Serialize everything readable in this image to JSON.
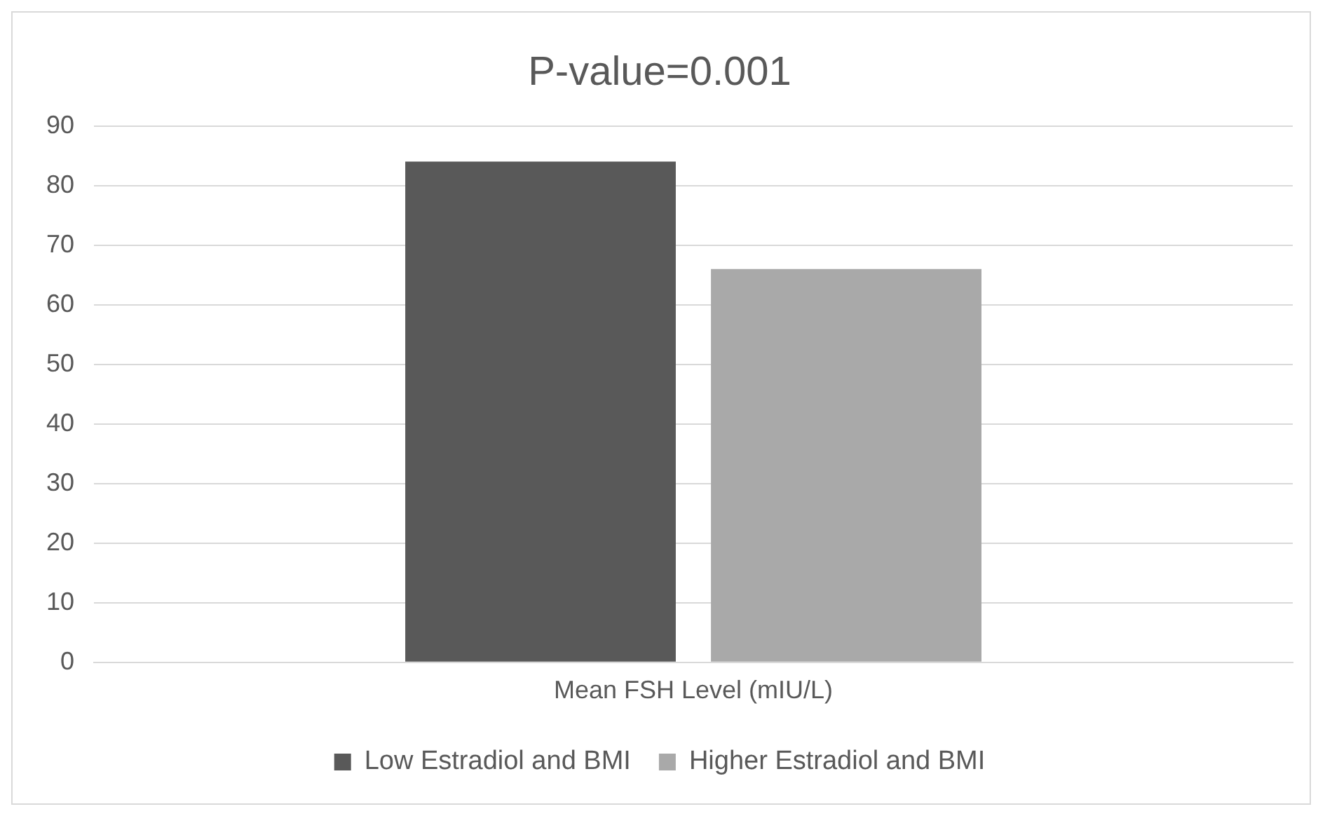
{
  "chart_data": {
    "type": "bar",
    "title": "P-value=0.001",
    "categories": [
      "Mean FSH Level (mIU/L)"
    ],
    "series": [
      {
        "name": "Low Estradiol and BMI",
        "color": "#595959",
        "values": [
          84
        ]
      },
      {
        "name": "Higher Estradiol and BMI",
        "color": "#a9a9a9",
        "values": [
          66
        ]
      }
    ],
    "ylim": [
      0,
      90
    ],
    "yticks": [
      0,
      10,
      20,
      30,
      40,
      50,
      60,
      70,
      80,
      90
    ],
    "grid": "y",
    "legend": "bottom"
  }
}
